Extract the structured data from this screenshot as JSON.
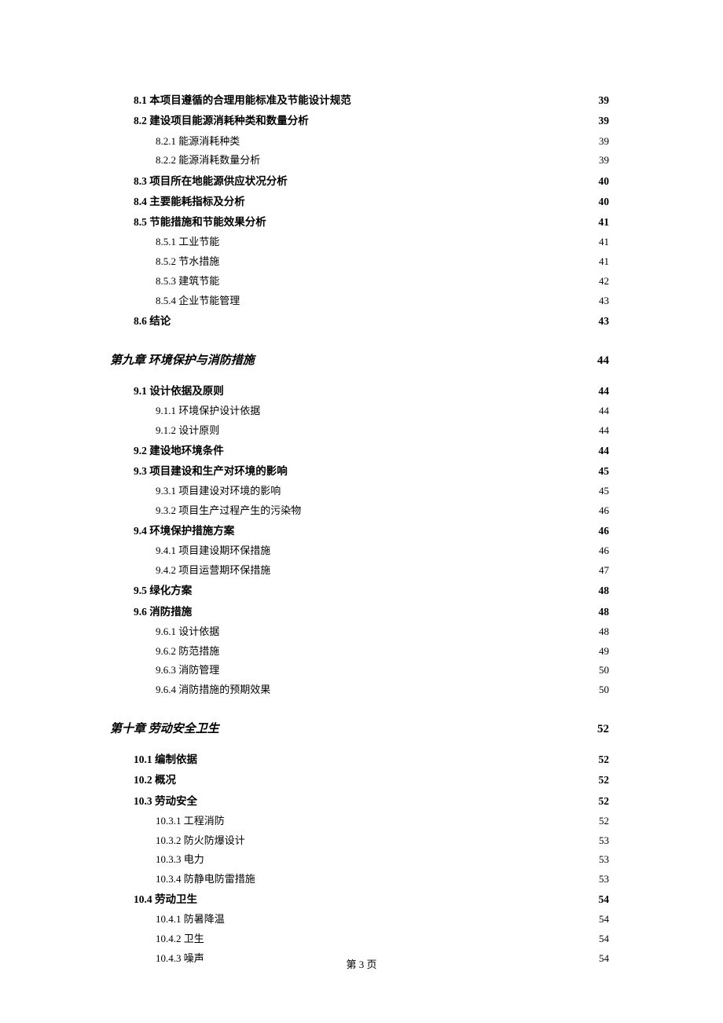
{
  "footer": "第 3 页",
  "entries": [
    {
      "level": 2,
      "label": "8.1 本项目遵循的合理用能标准及节能设计规范",
      "page": "39"
    },
    {
      "level": 2,
      "label": "8.2 建设项目能源消耗种类和数量分析",
      "page": "39"
    },
    {
      "level": 3,
      "label": "8.2.1 能源消耗种类",
      "page": "39"
    },
    {
      "level": 3,
      "label": "8.2.2 能源消耗数量分析",
      "page": "39"
    },
    {
      "level": 2,
      "label": "8.3 项目所在地能源供应状况分析",
      "page": "40"
    },
    {
      "level": 2,
      "label": "8.4 主要能耗指标及分析",
      "page": "40"
    },
    {
      "level": 2,
      "label": "8.5 节能措施和节能效果分析",
      "page": "41"
    },
    {
      "level": 3,
      "label": "8.5.1 工业节能",
      "page": "41"
    },
    {
      "level": 3,
      "label": "8.5.2 节水措施",
      "page": "41"
    },
    {
      "level": 3,
      "label": "8.5.3 建筑节能",
      "page": "42"
    },
    {
      "level": 3,
      "label": "8.5.4 企业节能管理",
      "page": "43"
    },
    {
      "level": 2,
      "label": "8.6 结论",
      "page": "43"
    },
    {
      "level": 1,
      "label": "第九章 环境保护与消防措施",
      "page": "44"
    },
    {
      "level": 2,
      "label": "9.1 设计依据及原则",
      "page": "44"
    },
    {
      "level": 3,
      "label": "9.1.1 环境保护设计依据",
      "page": "44"
    },
    {
      "level": 3,
      "label": "9.1.2 设计原则",
      "page": "44"
    },
    {
      "level": 2,
      "label": "9.2 建设地环境条件",
      "page": "44"
    },
    {
      "level": 2,
      "label": "9.3  项目建设和生产对环境的影响",
      "page": "45"
    },
    {
      "level": 3,
      "label": "9.3.1  项目建设对环境的影响",
      "page": "45"
    },
    {
      "level": 3,
      "label": "9.3.2 项目生产过程产生的污染物",
      "page": "46"
    },
    {
      "level": 2,
      "label": "9.4  环境保护措施方案",
      "page": "46"
    },
    {
      "level": 3,
      "label": "9.4.1  项目建设期环保措施",
      "page": "46"
    },
    {
      "level": 3,
      "label": "9.4.2  项目运营期环保措施",
      "page": "47"
    },
    {
      "level": 2,
      "label": "9.5 绿化方案",
      "page": "48"
    },
    {
      "level": 2,
      "label": "9.6 消防措施",
      "page": "48"
    },
    {
      "level": 3,
      "label": "9.6.1 设计依据",
      "page": "48"
    },
    {
      "level": 3,
      "label": "9.6.2 防范措施",
      "page": "49"
    },
    {
      "level": 3,
      "label": "9.6.3 消防管理",
      "page": "50"
    },
    {
      "level": 3,
      "label": "9.6.4 消防措施的预期效果",
      "page": "50"
    },
    {
      "level": 1,
      "label": "第十章 劳动安全卫生",
      "page": "52"
    },
    {
      "level": 2,
      "label": "10.1 编制依据",
      "page": "52"
    },
    {
      "level": 2,
      "label": "10.2 概况",
      "page": "52"
    },
    {
      "level": 2,
      "label": "10.3 劳动安全",
      "page": "52"
    },
    {
      "level": 3,
      "label": "10.3.1 工程消防",
      "page": "52"
    },
    {
      "level": 3,
      "label": "10.3.2 防火防爆设计",
      "page": "53"
    },
    {
      "level": 3,
      "label": "10.3.3 电力",
      "page": "53"
    },
    {
      "level": 3,
      "label": "10.3.4 防静电防雷措施",
      "page": "53"
    },
    {
      "level": 2,
      "label": "10.4 劳动卫生",
      "page": "54"
    },
    {
      "level": 3,
      "label": "10.4.1 防暑降温",
      "page": "54"
    },
    {
      "level": 3,
      "label": "10.4.2 卫生",
      "page": "54"
    },
    {
      "level": 3,
      "label": "10.4.3 噪声",
      "page": "54"
    }
  ]
}
